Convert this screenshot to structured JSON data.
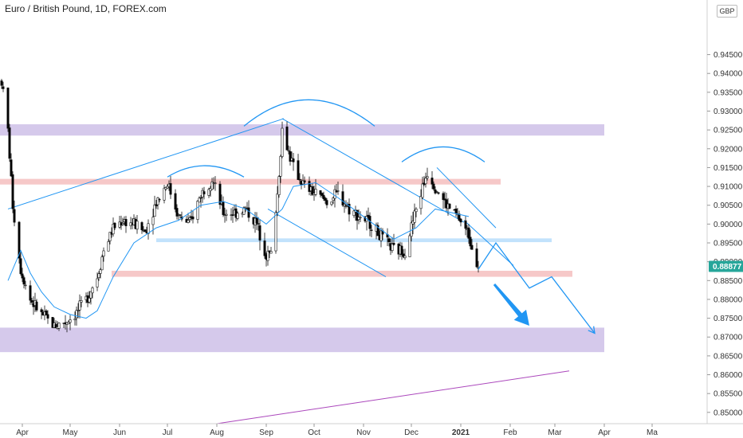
{
  "header": {
    "title": "Euro / British Pound, 1D, FOREX.com",
    "currency": "GBP"
  },
  "colors": {
    "up": "#26a69a",
    "down": "#000000",
    "candle": "#111111",
    "ma": "#2196f3",
    "price_badge": "#26a69a",
    "zone_purple": "#b39ddb",
    "zone_red": "#ef9a9a",
    "zone_blue": "#90caf9",
    "trend_line": "#2196f3",
    "support_line": "#ab47bc"
  },
  "chart_data": {
    "type": "candlestick",
    "title": "Euro / British Pound, 1D, FOREX.com",
    "y_axis": {
      "range": [
        0.847,
        0.9595
      ],
      "ticks": [
        "0.85000",
        "0.85500",
        "0.86000",
        "0.86500",
        "0.87000",
        "0.87500",
        "0.88000",
        "0.88500",
        "0.89000",
        "0.89500",
        "0.90000",
        "0.90500",
        "0.91000",
        "0.91500",
        "0.92000",
        "0.92500",
        "0.93000",
        "0.93500",
        "0.94000",
        "0.94500"
      ],
      "tick_values": [
        0.85,
        0.855,
        0.86,
        0.865,
        0.87,
        0.875,
        0.88,
        0.885,
        0.89,
        0.895,
        0.9,
        0.905,
        0.91,
        0.915,
        0.92,
        0.925,
        0.93,
        0.935,
        0.94,
        0.945
      ],
      "current_price": "0.88877",
      "current_value": 0.88877
    },
    "x_axis": {
      "labels": [
        {
          "text": "Apr",
          "date": "2020-04-01"
        },
        {
          "text": "May",
          "date": "2020-05-01"
        },
        {
          "text": "Jun",
          "date": "2020-06-01"
        },
        {
          "text": "Jul",
          "date": "2020-07-01"
        },
        {
          "text": "Aug",
          "date": "2020-08-01"
        },
        {
          "text": "Sep",
          "date": "2020-09-01"
        },
        {
          "text": "Oct",
          "date": "2020-10-01"
        },
        {
          "text": "Nov",
          "date": "2020-11-01"
        },
        {
          "text": "Dec",
          "date": "2020-12-01"
        },
        {
          "text": "2021",
          "date": "2021-01-01",
          "bold": true
        },
        {
          "text": "Feb",
          "date": "2021-02-01"
        },
        {
          "text": "Mar",
          "date": "2021-03-01"
        },
        {
          "text": "Apr",
          "date": "2021-04-01"
        },
        {
          "text": "Ma",
          "date": "2021-05-01"
        }
      ]
    },
    "price_path": [
      [
        "2020-03-19",
        0.938
      ],
      [
        "2020-03-23",
        0.925
      ],
      [
        "2020-03-26",
        0.905
      ],
      [
        "2020-03-31",
        0.888
      ],
      [
        "2020-04-06",
        0.88
      ],
      [
        "2020-04-13",
        0.876
      ],
      [
        "2020-04-21",
        0.873
      ],
      [
        "2020-04-28",
        0.874
      ],
      [
        "2020-05-04",
        0.876
      ],
      [
        "2020-05-11",
        0.88
      ],
      [
        "2020-05-18",
        0.886
      ],
      [
        "2020-05-22",
        0.893
      ],
      [
        "2020-05-28",
        0.899
      ],
      [
        "2020-06-03",
        0.901
      ],
      [
        "2020-06-10",
        0.9
      ],
      [
        "2020-06-17",
        0.898
      ],
      [
        "2020-06-24",
        0.906
      ],
      [
        "2020-07-01",
        0.911
      ],
      [
        "2020-07-08",
        0.902
      ],
      [
        "2020-07-15",
        0.9
      ],
      [
        "2020-07-22",
        0.908
      ],
      [
        "2020-07-29",
        0.912
      ],
      [
        "2020-08-05",
        0.903
      ],
      [
        "2020-08-12",
        0.903
      ],
      [
        "2020-08-19",
        0.904
      ],
      [
        "2020-08-26",
        0.9
      ],
      [
        "2020-09-01",
        0.892
      ],
      [
        "2020-09-04",
        0.892
      ],
      [
        "2020-09-08",
        0.908
      ],
      [
        "2020-09-11",
        0.925
      ],
      [
        "2020-09-18",
        0.915
      ],
      [
        "2020-09-25",
        0.91
      ],
      [
        "2020-10-02",
        0.908
      ],
      [
        "2020-10-09",
        0.906
      ],
      [
        "2020-10-16",
        0.908
      ],
      [
        "2020-10-23",
        0.904
      ],
      [
        "2020-10-30",
        0.902
      ],
      [
        "2020-11-06",
        0.9
      ],
      [
        "2020-11-13",
        0.896
      ],
      [
        "2020-11-20",
        0.893
      ],
      [
        "2020-11-27",
        0.893
      ],
      [
        "2020-12-04",
        0.904
      ],
      [
        "2020-12-11",
        0.914
      ],
      [
        "2020-12-16",
        0.91
      ],
      [
        "2020-12-23",
        0.905
      ],
      [
        "2020-12-30",
        0.902
      ],
      [
        "2021-01-06",
        0.897
      ],
      [
        "2021-01-12",
        0.889
      ]
    ],
    "moving_average": [
      [
        "2020-03-23",
        0.885
      ],
      [
        "2020-03-31",
        0.893
      ],
      [
        "2020-04-06",
        0.887
      ],
      [
        "2020-04-13",
        0.882
      ],
      [
        "2020-04-21",
        0.878
      ],
      [
        "2020-05-01",
        0.876
      ],
      [
        "2020-05-11",
        0.875
      ],
      [
        "2020-05-18",
        0.877
      ],
      [
        "2020-05-28",
        0.886
      ],
      [
        "2020-06-10",
        0.895
      ],
      [
        "2020-06-24",
        0.899
      ],
      [
        "2020-07-08",
        0.901
      ],
      [
        "2020-07-22",
        0.905
      ],
      [
        "2020-08-05",
        0.906
      ],
      [
        "2020-08-19",
        0.904
      ],
      [
        "2020-09-01",
        0.9
      ],
      [
        "2020-09-11",
        0.904
      ],
      [
        "2020-09-18",
        0.91
      ],
      [
        "2020-10-02",
        0.911
      ],
      [
        "2020-10-16",
        0.907
      ],
      [
        "2020-11-01",
        0.902
      ],
      [
        "2020-11-20",
        0.896
      ],
      [
        "2020-12-04",
        0.899
      ],
      [
        "2020-12-16",
        0.904
      ],
      [
        "2021-01-06",
        0.902
      ]
    ],
    "zones": [
      {
        "color": "zone_purple",
        "x1": "2020-03-18",
        "x2": "2021-04-01",
        "y1": 0.9265,
        "y2": 0.9235
      },
      {
        "color": "zone_red",
        "x1": "2020-03-18",
        "x2": "2021-01-26",
        "y1": 0.912,
        "y2": 0.9105
      },
      {
        "color": "zone_blue",
        "x1": "2020-06-24",
        "x2": "2021-02-27",
        "y1": 0.8962,
        "y2": 0.8952
      },
      {
        "color": "zone_red",
        "x1": "2020-05-27",
        "x2": "2021-03-12",
        "y1": 0.8876,
        "y2": 0.886
      },
      {
        "color": "zone_purple",
        "x1": "2020-03-18",
        "x2": "2021-04-01",
        "y1": 0.8725,
        "y2": 0.866
      }
    ],
    "lines": [
      {
        "color": "trend_line",
        "points": [
          [
            "2020-03-23",
            0.904
          ],
          [
            "2020-09-12",
            0.928
          ]
        ]
      },
      {
        "color": "trend_line",
        "points": [
          [
            "2020-09-11",
            0.928
          ],
          [
            "2021-01-03",
            0.9005
          ]
        ]
      },
      {
        "color": "trend_line",
        "points": [
          [
            "2020-09-02",
            0.904
          ],
          [
            "2020-11-15",
            0.886
          ]
        ]
      },
      {
        "color": "trend_line",
        "points": [
          [
            "2020-12-17",
            0.915
          ],
          [
            "2021-01-23",
            0.899
          ]
        ]
      },
      {
        "color": "trend_line",
        "points": [
          [
            "2021-01-03",
            0.901
          ],
          [
            "2021-02-03",
            0.889
          ]
        ]
      },
      {
        "color": "support_line",
        "points": [
          [
            "2020-08-01",
            0.847
          ],
          [
            "2021-03-10",
            0.861
          ]
        ]
      }
    ],
    "arches": [
      {
        "x1": "2020-07-01",
        "x2": "2020-08-18",
        "peak_date": "2020-07-24",
        "base": 0.9125,
        "peak": 0.9155
      },
      {
        "x1": "2020-08-18",
        "x2": "2020-11-08",
        "peak_date": "2020-09-27",
        "base": 0.926,
        "peak": 0.933
      },
      {
        "x1": "2020-11-25",
        "x2": "2021-01-16",
        "peak_date": "2020-12-21",
        "base": 0.9165,
        "peak": 0.9205
      }
    ],
    "forecast_path": [
      [
        "2021-01-12",
        0.888
      ],
      [
        "2021-01-23",
        0.895
      ],
      [
        "2021-02-13",
        0.883
      ],
      [
        "2021-02-27",
        0.886
      ],
      [
        "2021-03-26",
        0.871
      ]
    ],
    "forecast_arrow": {
      "from": [
        "2021-01-22",
        0.884
      ],
      "to": [
        "2021-02-13",
        0.873
      ]
    }
  }
}
